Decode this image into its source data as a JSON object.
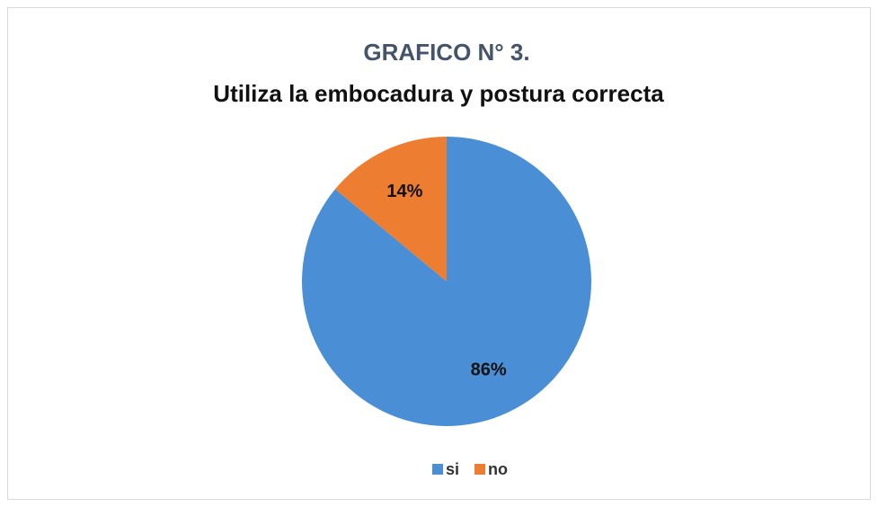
{
  "chart_data": {
    "type": "pie",
    "title": "GRAFICO N° 3.",
    "subtitle": "Utiliza la embocadura y postura correcta",
    "categories": [
      "si",
      "no"
    ],
    "values": [
      86,
      14
    ],
    "value_labels": [
      "86%",
      "14%"
    ],
    "colors": [
      "#4a8fd6",
      "#ed7d31"
    ],
    "legend": "bottom"
  }
}
